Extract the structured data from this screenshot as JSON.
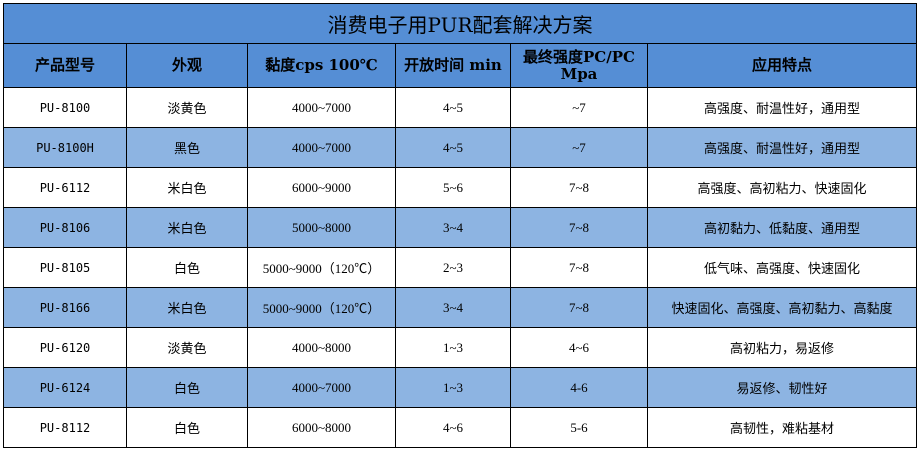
{
  "title": "消费电子用PUR配套解决方案",
  "headers": [
    "产品型号",
    "外观",
    "黏度cps 100℃",
    "开放时间 min",
    "最终强度PC/PC Mpa",
    "应用特点"
  ],
  "rows": [
    [
      "PU-8100",
      "淡黄色",
      "4000~7000",
      "4~5",
      "~7",
      "高强度、耐温性好，通用型"
    ],
    [
      "PU-8100H",
      "黑色",
      "4000~7000",
      "4~5",
      "~7",
      "高强度、耐温性好，通用型"
    ],
    [
      "PU-6112",
      "米白色",
      "6000~9000",
      "5~6",
      "7~8",
      "高强度、高初粘力、快速固化"
    ],
    [
      "PU-8106",
      "米白色",
      "5000~8000",
      "3~4",
      "7~8",
      "高初黏力、低黏度、通用型"
    ],
    [
      "PU-8105",
      "白色",
      "5000~9000（120℃）",
      "2~3",
      "7~8",
      "低气味、高强度、快速固化"
    ],
    [
      "PU-8166",
      "米白色",
      "5000~9000（120℃）",
      "3~4",
      "7~8",
      "快速固化、高强度、高初黏力、高黏度"
    ],
    [
      "PU-6120",
      "淡黄色",
      "4000~8000",
      "1~3",
      "4~6",
      "高初粘力，易返修"
    ],
    [
      "PU-6124",
      "白色",
      "4000~7000",
      "1~3",
      "4-6",
      "易返修、韧性好"
    ],
    [
      "PU-8112",
      "白色",
      "6000~8000",
      "4~6",
      "5-6",
      "高韧性，难粘基材"
    ]
  ],
  "colors": {
    "header": "#558ed5",
    "alt_row": "#8db4e2",
    "row": "#ffffff"
  }
}
